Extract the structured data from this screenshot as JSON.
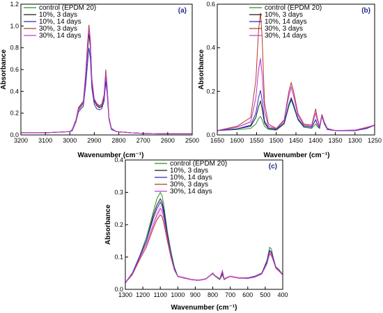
{
  "colors": {
    "control": "#2e8b2e",
    "d10_3": "#1a1a1a",
    "d10_14": "#2a2ab8",
    "d30_3": "#b23a2a",
    "d30_14": "#c23ad6",
    "errband": "#f4c9ea"
  },
  "chart_data": [
    {
      "type": "line",
      "panel": "(a)",
      "xlabel": "Wavenumber (cm⁻¹)",
      "ylabel": "Absorbance",
      "xlim": [
        3200,
        2500
      ],
      "ylim": [
        0,
        1.2
      ],
      "xticks": [
        "3200",
        "3100",
        "3000",
        "2900",
        "2800",
        "2700",
        "2600",
        "2500"
      ],
      "yticks": [
        "0.0",
        "0.2",
        "0.4",
        "0.6",
        "0.8",
        "1.0",
        "1.2"
      ],
      "xtickvals": [
        3200,
        3100,
        3000,
        2900,
        2800,
        2700,
        2600,
        2500
      ],
      "ytickvals": [
        0,
        0.2,
        0.4,
        0.6,
        0.8,
        1.0,
        1.2
      ],
      "legend_position": "top-left",
      "x": [
        3200,
        3100,
        3000,
        2990,
        2975,
        2965,
        2955,
        2945,
        2935,
        2928,
        2922,
        2916,
        2910,
        2900,
        2890,
        2880,
        2870,
        2860,
        2853,
        2848,
        2840,
        2830,
        2810,
        2750,
        2700,
        2600,
        2500
      ],
      "series": [
        {
          "name": "control (EPDM 20)",
          "color_key": "control",
          "values": [
            0.02,
            0.02,
            0.03,
            0.05,
            0.14,
            0.24,
            0.27,
            0.3,
            0.55,
            0.8,
            0.99,
            0.85,
            0.5,
            0.32,
            0.28,
            0.26,
            0.27,
            0.36,
            0.58,
            0.45,
            0.16,
            0.06,
            0.03,
            0.02,
            0.015,
            0.01,
            0.01
          ]
        },
        {
          "name": "10%, 3 days",
          "color_key": "d10_3",
          "values": [
            0.02,
            0.02,
            0.03,
            0.05,
            0.13,
            0.23,
            0.26,
            0.29,
            0.52,
            0.75,
            0.93,
            0.8,
            0.48,
            0.31,
            0.27,
            0.25,
            0.26,
            0.34,
            0.55,
            0.43,
            0.15,
            0.06,
            0.03,
            0.02,
            0.015,
            0.01,
            0.01
          ]
        },
        {
          "name": "10%, 14 days",
          "color_key": "d10_14",
          "values": [
            0.02,
            0.02,
            0.03,
            0.04,
            0.12,
            0.21,
            0.24,
            0.26,
            0.46,
            0.65,
            0.8,
            0.7,
            0.43,
            0.28,
            0.24,
            0.23,
            0.24,
            0.31,
            0.49,
            0.39,
            0.14,
            0.05,
            0.03,
            0.02,
            0.015,
            0.01,
            0.01
          ]
        },
        {
          "name": "30%, 3 days",
          "color_key": "d30_3",
          "values": [
            0.02,
            0.02,
            0.03,
            0.05,
            0.14,
            0.25,
            0.28,
            0.31,
            0.57,
            0.83,
            1.01,
            0.87,
            0.52,
            0.33,
            0.29,
            0.27,
            0.28,
            0.37,
            0.6,
            0.46,
            0.16,
            0.06,
            0.03,
            0.02,
            0.015,
            0.01,
            0.01
          ]
        },
        {
          "name": "30%, 14 days",
          "color_key": "d30_14",
          "values": [
            0.02,
            0.02,
            0.03,
            0.05,
            0.13,
            0.23,
            0.26,
            0.29,
            0.54,
            0.79,
            0.98,
            0.84,
            0.5,
            0.32,
            0.28,
            0.26,
            0.27,
            0.35,
            0.57,
            0.44,
            0.15,
            0.06,
            0.03,
            0.02,
            0.015,
            0.01,
            0.01
          ]
        }
      ]
    },
    {
      "type": "line",
      "panel": "(b)",
      "xlabel": "Wavenumber (cm⁻¹)",
      "ylabel": "Absorbance",
      "xlim": [
        1650,
        1250
      ],
      "ylim": [
        0,
        0.6
      ],
      "xticks": [
        "1650",
        "1600",
        "1550",
        "1500",
        "1450",
        "1400",
        "1350",
        "1300",
        "1250"
      ],
      "yticks": [
        "0.0",
        "0.2",
        "0.4",
        "0.6"
      ],
      "xtickvals": [
        1650,
        1600,
        1550,
        1500,
        1450,
        1400,
        1350,
        1300,
        1250
      ],
      "ytickvals": [
        0,
        0.2,
        0.4,
        0.6
      ],
      "legend_position": "top-right",
      "x": [
        1650,
        1600,
        1565,
        1552,
        1545,
        1540,
        1536,
        1530,
        1520,
        1500,
        1480,
        1468,
        1462,
        1456,
        1445,
        1430,
        1410,
        1400,
        1396,
        1390,
        1384,
        1378,
        1370,
        1350,
        1300,
        1270,
        1250
      ],
      "series": [
        {
          "name": "control (EPDM 20)",
          "color_key": "control",
          "values": [
            0.02,
            0.025,
            0.03,
            0.05,
            0.075,
            0.085,
            0.07,
            0.04,
            0.025,
            0.022,
            0.05,
            0.13,
            0.16,
            0.13,
            0.07,
            0.035,
            0.03,
            0.05,
            0.04,
            0.03,
            0.085,
            0.05,
            0.025,
            0.02,
            0.02,
            0.03,
            0.045
          ]
        },
        {
          "name": "10%, 3 days",
          "color_key": "d10_3",
          "values": [
            0.02,
            0.028,
            0.04,
            0.08,
            0.13,
            0.155,
            0.12,
            0.055,
            0.03,
            0.025,
            0.055,
            0.14,
            0.17,
            0.14,
            0.075,
            0.04,
            0.035,
            0.07,
            0.05,
            0.032,
            0.09,
            0.055,
            0.025,
            0.02,
            0.02,
            0.03,
            0.045
          ]
        },
        {
          "name": "10%, 14 days",
          "color_key": "d10_14",
          "values": [
            0.02,
            0.028,
            0.045,
            0.1,
            0.17,
            0.205,
            0.16,
            0.065,
            0.032,
            0.026,
            0.055,
            0.14,
            0.165,
            0.135,
            0.072,
            0.04,
            0.035,
            0.07,
            0.05,
            0.032,
            0.09,
            0.055,
            0.025,
            0.02,
            0.02,
            0.03,
            0.045
          ]
        },
        {
          "name": "30%, 3 days",
          "color_key": "d30_3",
          "values": [
            0.02,
            0.04,
            0.08,
            0.25,
            0.48,
            0.56,
            0.45,
            0.15,
            0.05,
            0.03,
            0.07,
            0.2,
            0.24,
            0.2,
            0.1,
            0.05,
            0.045,
            0.12,
            0.08,
            0.04,
            0.095,
            0.06,
            0.03,
            0.02,
            0.022,
            0.035,
            0.045
          ]
        },
        {
          "name": "30%, 14 days",
          "color_key": "d30_14",
          "values": [
            0.02,
            0.035,
            0.06,
            0.17,
            0.3,
            0.35,
            0.28,
            0.11,
            0.04,
            0.028,
            0.065,
            0.18,
            0.22,
            0.18,
            0.09,
            0.045,
            0.04,
            0.1,
            0.07,
            0.036,
            0.09,
            0.058,
            0.028,
            0.02,
            0.022,
            0.033,
            0.045
          ]
        }
      ]
    },
    {
      "type": "line",
      "panel": "(c)",
      "xlabel": "Wavenumber (cm⁻¹)",
      "ylabel": "Absorbance",
      "xlim": [
        1300,
        400
      ],
      "ylim": [
        0,
        0.4
      ],
      "xticks": [
        "1300",
        "1200",
        "1100",
        "1000",
        "900",
        "800",
        "700",
        "600",
        "500",
        "400"
      ],
      "yticks": [
        "0.0",
        "0.1",
        "0.2",
        "0.3",
        "0.4"
      ],
      "xtickvals": [
        1300,
        1200,
        1100,
        1000,
        900,
        800,
        700,
        600,
        500,
        400
      ],
      "ytickvals": [
        0,
        0.1,
        0.2,
        0.3,
        0.4
      ],
      "legend_position": "top-center",
      "x": [
        1300,
        1260,
        1220,
        1180,
        1140,
        1120,
        1100,
        1090,
        1080,
        1060,
        1040,
        1020,
        1000,
        960,
        920,
        880,
        840,
        810,
        800,
        790,
        760,
        745,
        735,
        720,
        700,
        650,
        600,
        560,
        520,
        490,
        475,
        465,
        455,
        440,
        420,
        400
      ],
      "series": [
        {
          "name": "control (EPDM 20)",
          "color_key": "control",
          "values": [
            0.02,
            0.05,
            0.1,
            0.16,
            0.24,
            0.28,
            0.3,
            0.29,
            0.26,
            0.18,
            0.12,
            0.07,
            0.04,
            0.035,
            0.03,
            0.028,
            0.032,
            0.045,
            0.048,
            0.042,
            0.03,
            0.045,
            0.03,
            0.035,
            0.04,
            0.035,
            0.035,
            0.04,
            0.05,
            0.09,
            0.13,
            0.125,
            0.1,
            0.07,
            0.06,
            0.045
          ]
        },
        {
          "name": "10%, 3 days",
          "color_key": "d10_3",
          "values": [
            0.02,
            0.05,
            0.1,
            0.15,
            0.23,
            0.26,
            0.28,
            0.27,
            0.245,
            0.17,
            0.11,
            0.065,
            0.04,
            0.035,
            0.03,
            0.028,
            0.032,
            0.045,
            0.05,
            0.043,
            0.032,
            0.05,
            0.032,
            0.036,
            0.04,
            0.035,
            0.035,
            0.04,
            0.05,
            0.085,
            0.12,
            0.115,
            0.095,
            0.068,
            0.058,
            0.045
          ]
        },
        {
          "name": "10%, 14 days",
          "color_key": "d10_14",
          "values": [
            0.02,
            0.05,
            0.1,
            0.15,
            0.22,
            0.25,
            0.27,
            0.26,
            0.235,
            0.165,
            0.11,
            0.065,
            0.04,
            0.035,
            0.03,
            0.028,
            0.032,
            0.045,
            0.05,
            0.043,
            0.032,
            0.05,
            0.032,
            0.036,
            0.04,
            0.035,
            0.035,
            0.04,
            0.05,
            0.085,
            0.12,
            0.115,
            0.095,
            0.068,
            0.058,
            0.045
          ]
        },
        {
          "name": "30%, 3 days",
          "color_key": "d30_3",
          "values": [
            0.02,
            0.045,
            0.09,
            0.13,
            0.19,
            0.215,
            0.23,
            0.225,
            0.205,
            0.15,
            0.1,
            0.06,
            0.04,
            0.034,
            0.03,
            0.028,
            0.032,
            0.045,
            0.05,
            0.043,
            0.032,
            0.055,
            0.032,
            0.036,
            0.04,
            0.035,
            0.034,
            0.038,
            0.048,
            0.08,
            0.11,
            0.105,
            0.09,
            0.066,
            0.056,
            0.045
          ]
        },
        {
          "name": "30%, 14 days",
          "color_key": "d30_14",
          "values": [
            0.02,
            0.048,
            0.095,
            0.14,
            0.2,
            0.23,
            0.25,
            0.245,
            0.22,
            0.16,
            0.105,
            0.062,
            0.04,
            0.035,
            0.03,
            0.028,
            0.032,
            0.045,
            0.05,
            0.043,
            0.032,
            0.058,
            0.032,
            0.036,
            0.04,
            0.035,
            0.034,
            0.038,
            0.048,
            0.08,
            0.115,
            0.11,
            0.092,
            0.067,
            0.057,
            0.045
          ]
        }
      ]
    }
  ]
}
